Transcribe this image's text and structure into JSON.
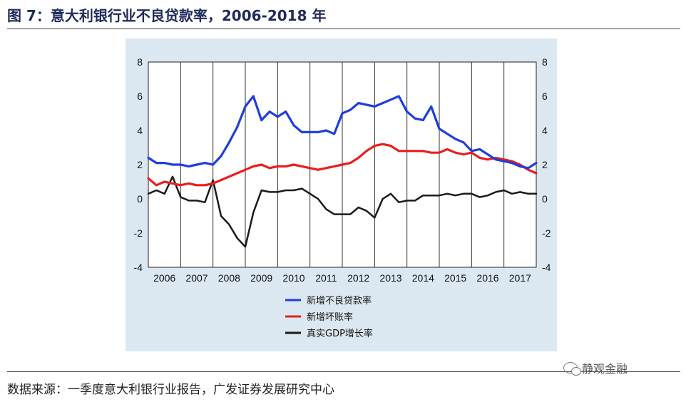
{
  "figure": {
    "title": "图 7：意大利银行业不良贷款率，2006-2018 年",
    "source": "数据来源：一季度意大利银行业报告，广发证券发展研究中心",
    "watermark": "静观金融"
  },
  "chart_data": {
    "type": "line",
    "title": "",
    "xlabel": "",
    "ylabel": "",
    "ylim": [
      -4,
      8
    ],
    "yticks": [
      -4,
      -2,
      0,
      2,
      4,
      6,
      8
    ],
    "xlim": [
      2006,
      2018
    ],
    "xticks": [
      "2006",
      "2007",
      "2008",
      "2009",
      "2010",
      "2011",
      "2012",
      "2013",
      "2014",
      "2015",
      "2016",
      "2017"
    ],
    "grid": "vertical year separators",
    "legend_position": "bottom",
    "series": [
      {
        "name": "新增不良贷款率",
        "color": "#1f3ddb",
        "x": [
          2006.0,
          2006.25,
          2006.5,
          2006.75,
          2007.0,
          2007.25,
          2007.5,
          2007.75,
          2008.0,
          2008.25,
          2008.5,
          2008.75,
          2009.0,
          2009.25,
          2009.5,
          2009.75,
          2010.0,
          2010.25,
          2010.5,
          2010.75,
          2011.0,
          2011.25,
          2011.5,
          2011.75,
          2012.0,
          2012.25,
          2012.5,
          2012.75,
          2013.0,
          2013.25,
          2013.5,
          2013.75,
          2014.0,
          2014.25,
          2014.5,
          2014.75,
          2015.0,
          2015.25,
          2015.5,
          2015.75,
          2016.0,
          2016.25,
          2016.5,
          2016.75,
          2017.0,
          2017.25,
          2017.5,
          2017.75,
          2018.0
        ],
        "values": [
          2.4,
          2.1,
          2.1,
          2.0,
          2.0,
          1.9,
          2.0,
          2.1,
          2.0,
          2.5,
          3.3,
          4.2,
          5.4,
          6.0,
          4.6,
          5.1,
          4.8,
          5.1,
          4.3,
          3.9,
          3.9,
          3.9,
          4.0,
          3.8,
          5.0,
          5.2,
          5.6,
          5.5,
          5.4,
          5.6,
          5.8,
          6.0,
          5.1,
          4.7,
          4.6,
          5.4,
          4.1,
          3.8,
          3.5,
          3.3,
          2.8,
          2.9,
          2.6,
          2.3,
          2.2,
          2.1,
          1.9,
          1.8,
          2.1
        ]
      },
      {
        "name": "新增坏账率",
        "color": "#e81e1e",
        "x": [
          2006.0,
          2006.25,
          2006.5,
          2006.75,
          2007.0,
          2007.25,
          2007.5,
          2007.75,
          2008.0,
          2008.25,
          2008.5,
          2008.75,
          2009.0,
          2009.25,
          2009.5,
          2009.75,
          2010.0,
          2010.25,
          2010.5,
          2010.75,
          2011.0,
          2011.25,
          2011.5,
          2011.75,
          2012.0,
          2012.25,
          2012.5,
          2012.75,
          2013.0,
          2013.25,
          2013.5,
          2013.75,
          2014.0,
          2014.25,
          2014.5,
          2014.75,
          2015.0,
          2015.25,
          2015.5,
          2015.75,
          2016.0,
          2016.25,
          2016.5,
          2016.75,
          2017.0,
          2017.25,
          2017.5,
          2017.75,
          2018.0
        ],
        "values": [
          1.2,
          0.8,
          1.0,
          0.9,
          0.8,
          0.9,
          0.8,
          0.8,
          0.9,
          1.1,
          1.3,
          1.5,
          1.7,
          1.9,
          2.0,
          1.8,
          1.9,
          1.9,
          2.0,
          1.9,
          1.8,
          1.7,
          1.8,
          1.9,
          2.0,
          2.1,
          2.4,
          2.8,
          3.1,
          3.2,
          3.1,
          2.8,
          2.8,
          2.8,
          2.8,
          2.7,
          2.7,
          2.9,
          2.7,
          2.6,
          2.7,
          2.4,
          2.3,
          2.4,
          2.3,
          2.2,
          2.0,
          1.7,
          1.5
        ]
      },
      {
        "name": "真实GDP增长率",
        "color": "#1a1a1a",
        "x": [
          2006.0,
          2006.25,
          2006.5,
          2006.75,
          2007.0,
          2007.25,
          2007.5,
          2007.75,
          2008.0,
          2008.25,
          2008.5,
          2008.75,
          2009.0,
          2009.25,
          2009.5,
          2009.75,
          2010.0,
          2010.25,
          2010.5,
          2010.75,
          2011.0,
          2011.25,
          2011.5,
          2011.75,
          2012.0,
          2012.25,
          2012.5,
          2012.75,
          2013.0,
          2013.25,
          2013.5,
          2013.75,
          2014.0,
          2014.25,
          2014.5,
          2014.75,
          2015.0,
          2015.25,
          2015.5,
          2015.75,
          2016.0,
          2016.25,
          2016.5,
          2016.75,
          2017.0,
          2017.25,
          2017.5,
          2017.75,
          2018.0
        ],
        "values": [
          0.3,
          0.5,
          0.3,
          1.3,
          0.1,
          -0.1,
          -0.1,
          -0.2,
          1.1,
          -1.0,
          -1.5,
          -2.3,
          -2.8,
          -0.8,
          0.5,
          0.4,
          0.4,
          0.5,
          0.5,
          0.6,
          0.3,
          0.0,
          -0.6,
          -0.9,
          -0.9,
          -0.9,
          -0.5,
          -0.7,
          -1.1,
          0.0,
          0.3,
          -0.2,
          -0.1,
          -0.1,
          0.2,
          0.2,
          0.2,
          0.3,
          0.2,
          0.3,
          0.3,
          0.1,
          0.2,
          0.4,
          0.5,
          0.3,
          0.4,
          0.3,
          0.3
        ]
      }
    ]
  }
}
